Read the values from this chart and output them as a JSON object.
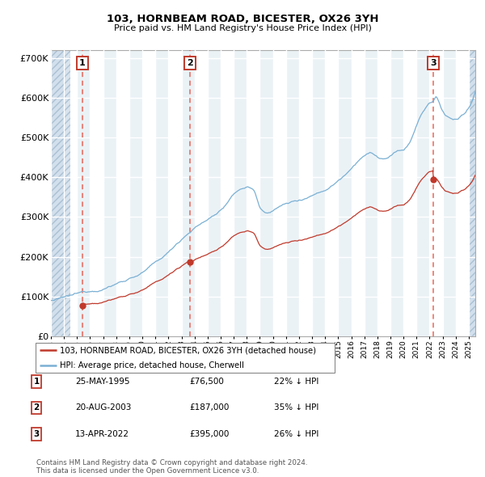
{
  "title": "103, HORNBEAM ROAD, BICESTER, OX26 3YH",
  "subtitle": "Price paid vs. HM Land Registry's House Price Index (HPI)",
  "xlim": [
    1993.0,
    2025.5
  ],
  "ylim": [
    0,
    720000
  ],
  "yticks": [
    0,
    100000,
    200000,
    300000,
    400000,
    500000,
    600000,
    700000
  ],
  "ytick_labels": [
    "£0",
    "£100K",
    "£200K",
    "£300K",
    "£400K",
    "£500K",
    "£600K",
    "£700K"
  ],
  "purchase_dates": [
    1995.39,
    2003.63,
    2022.28
  ],
  "purchase_prices": [
    76500,
    187000,
    395000
  ],
  "purchase_labels": [
    "1",
    "2",
    "3"
  ],
  "table_rows": [
    [
      "1",
      "25-MAY-1995",
      "£76,500",
      "22% ↓ HPI"
    ],
    [
      "2",
      "20-AUG-2003",
      "£187,000",
      "35% ↓ HPI"
    ],
    [
      "3",
      "13-APR-2022",
      "£395,000",
      "26% ↓ HPI"
    ]
  ],
  "legend_line1": "103, HORNBEAM ROAD, BICESTER, OX26 3YH (detached house)",
  "legend_line2": "HPI: Average price, detached house, Cherwell",
  "footnote": "Contains HM Land Registry data © Crown copyright and database right 2024.\nThis data is licensed under the Open Government Licence v3.0.",
  "bg_color": "#dce8f0",
  "grid_color": "#ffffff",
  "red_line_color": "#c0392b",
  "blue_line_color": "#7ab0d4",
  "dashed_color": "#e74c3c"
}
